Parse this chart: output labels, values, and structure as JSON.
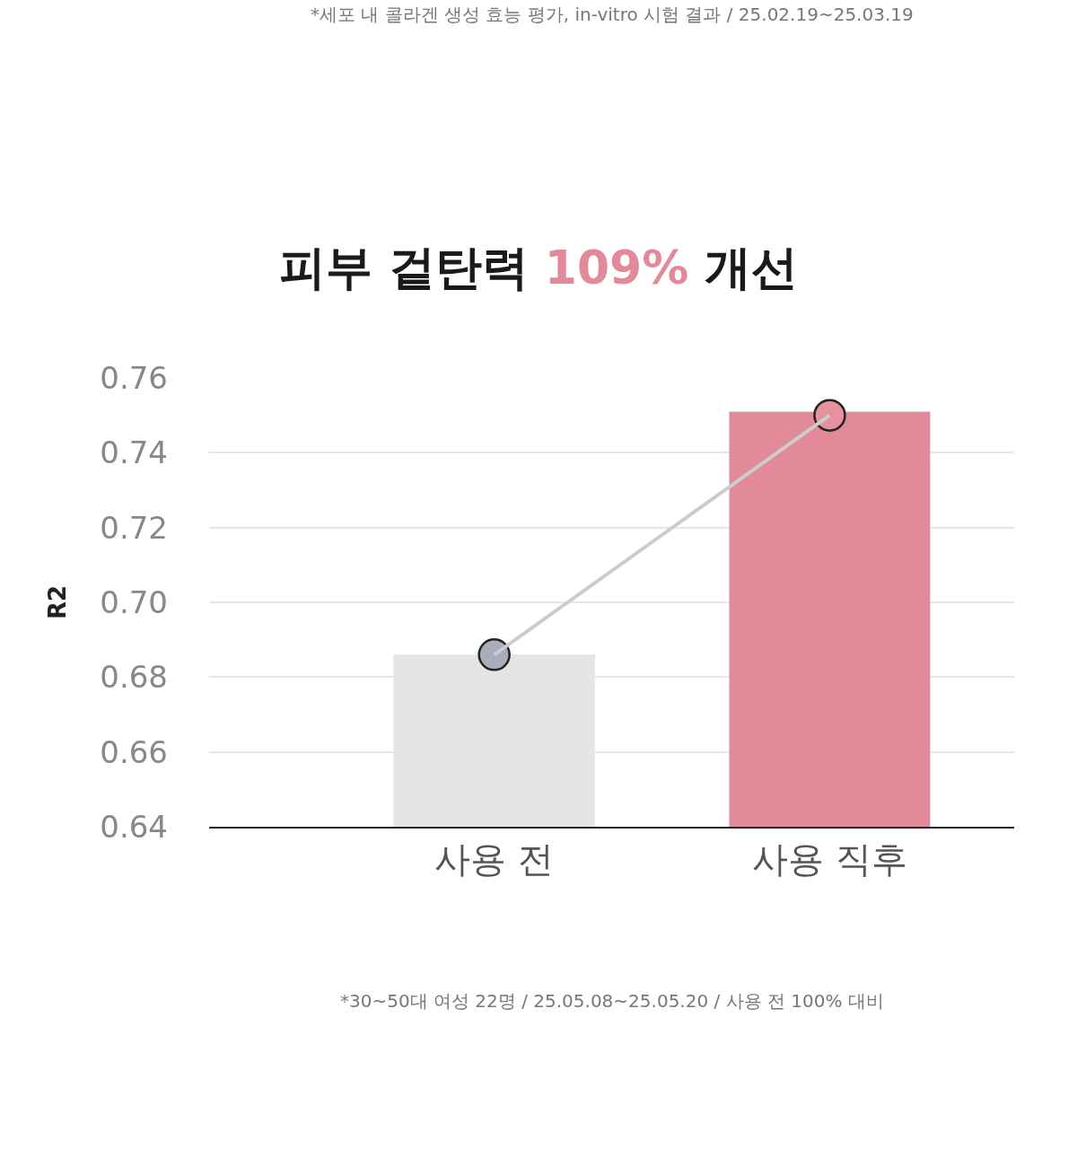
{
  "chart_data": {
    "type": "bar",
    "title": "피부 겉탄력 109% 개선",
    "ylabel": "R2",
    "categories": [
      "사용 전",
      "사용 직후"
    ],
    "series": [
      {
        "colors": [
          "#e5e5e5",
          "#e28a9a"
        ],
        "values": [
          0.686,
          0.751
        ]
      },
      {
        "type": "line",
        "color": "#cccccc",
        "colors": [
          "#a9adbb",
          "#e8919e"
        ],
        "marker": "circle",
        "values": [
          0.686,
          0.75
        ]
      }
    ],
    "ylim": [
      0.64,
      0.76
    ],
    "yticks": [
      0.64,
      0.66,
      0.68,
      {
        "value": 0.7,
        "label": "0.70"
      },
      0.72,
      0.74,
      0.76
    ],
    "grid": "y",
    "annotations": [
      "*세포 내 콜라겐 생성 효능 평가, in-vitro 시험 결과 / 25.02.19~25.03.19",
      "*30~50대 여성 22명 / 25.05.08~25.05.20 / 사용 전 100% 대비"
    ]
  }
}
